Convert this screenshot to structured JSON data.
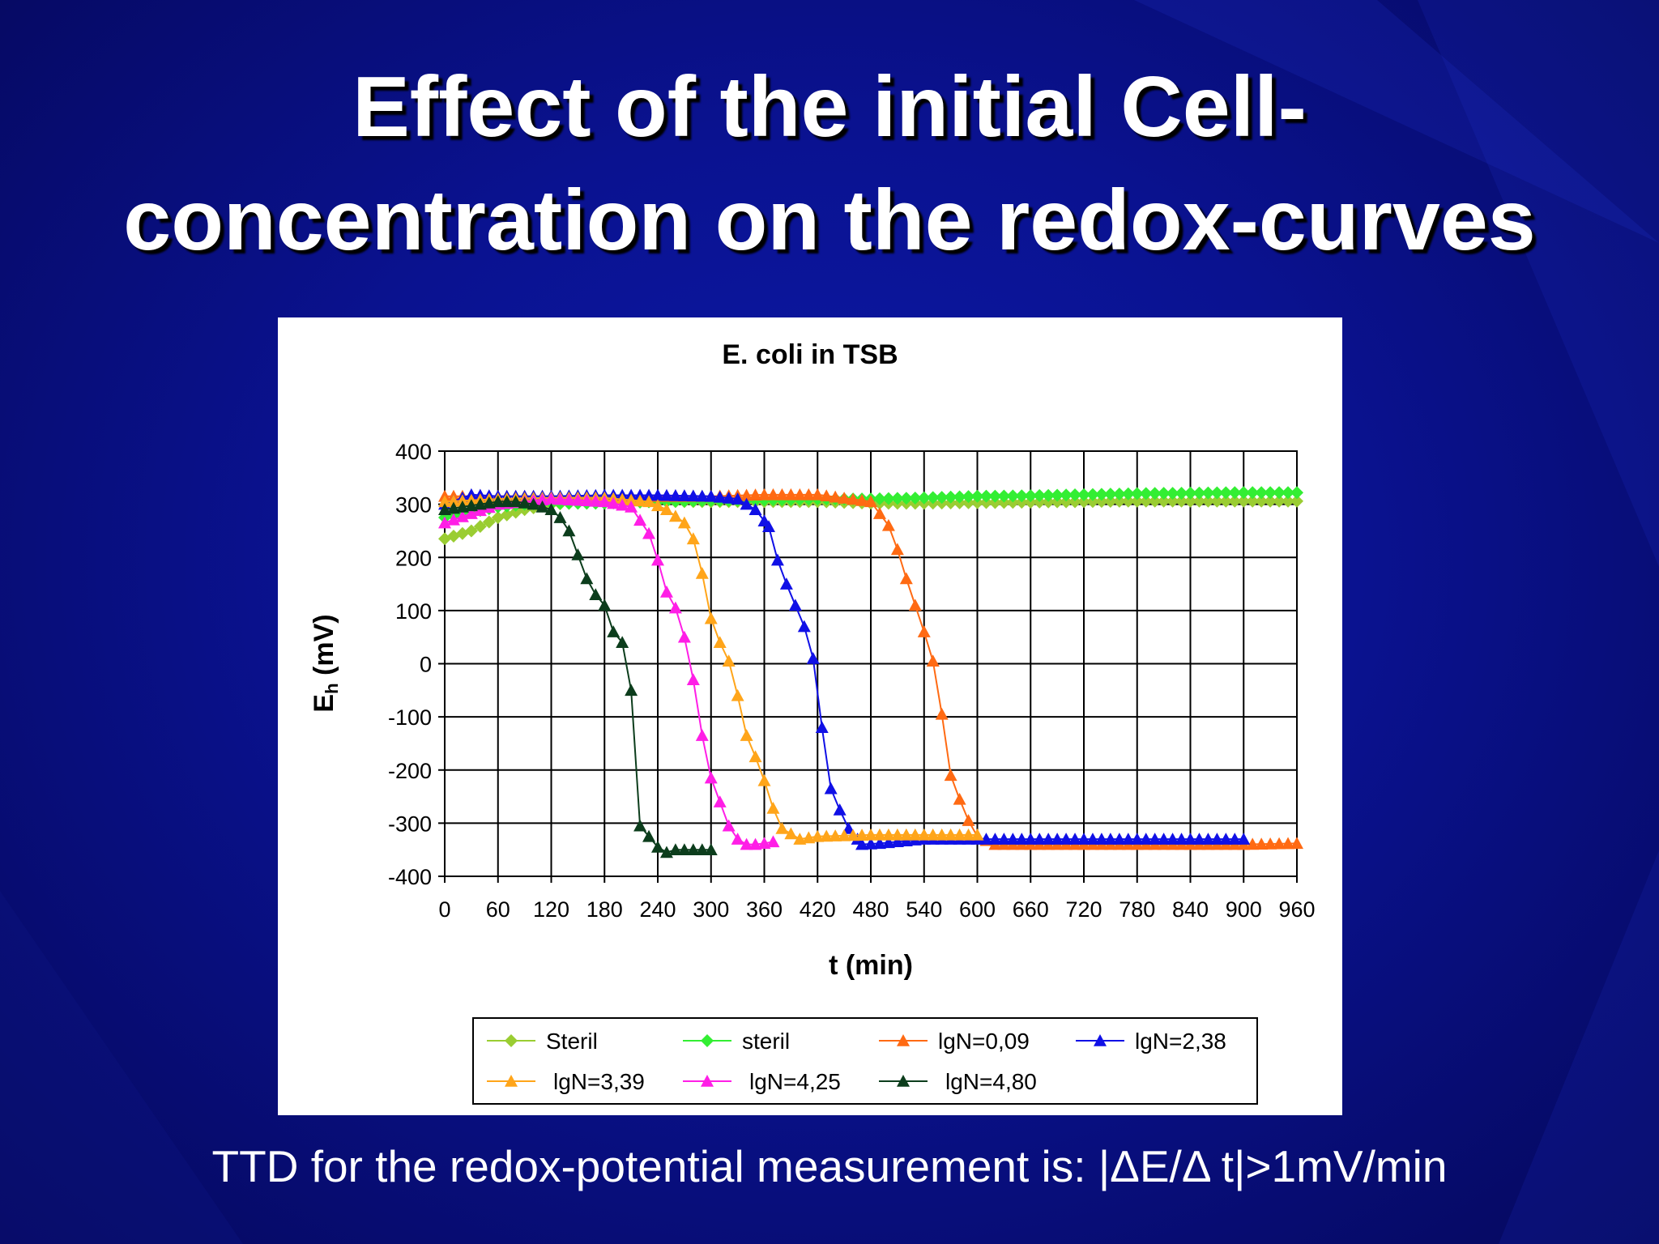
{
  "slide": {
    "title_line1": "Effect of the initial Cell-",
    "title_line2": "concentration on the redox-curves",
    "footer": "TTD for the redox-potential measurement is: |ΔE/Δ t|>1mV/min"
  },
  "colors": {
    "background": "#0a1290",
    "title": "#ffffff",
    "Steril": "#9acd32",
    "steril": "#33ee33",
    "lgN=0,09": "#ff6a13",
    "lgN=2,38": "#1010e6",
    "lgN=3,39": "#ffa51a",
    "lgN=4,25": "#ff1ee6",
    "lgN=4,80": "#0c3d1c"
  },
  "chart_data": {
    "type": "line",
    "title": "E. coli  in TSB",
    "xlabel": "t (min)",
    "ylabel": "Eh (mV)",
    "xlim": [
      0,
      960
    ],
    "ylim": [
      -400,
      400
    ],
    "xticks": [
      "0",
      "60",
      "120",
      "180",
      "240",
      "300",
      "360",
      "420",
      "480",
      "540",
      "600",
      "660",
      "720",
      "780",
      "840",
      "900",
      "960"
    ],
    "yticks": [
      "400",
      "300",
      "200",
      "100",
      "0",
      "-100",
      "-200",
      "-300",
      "-400"
    ],
    "grid": true,
    "legend_position": "bottom",
    "legend": [
      "Steril",
      "steril",
      "lgN=0,09",
      "lgN=2,38",
      "lgN=3,39",
      "lgN=4,25",
      "lgN=4,80"
    ],
    "series": [
      {
        "name": "Steril",
        "marker": "diamond",
        "x": [
          0,
          30,
          60,
          90,
          120,
          180,
          240,
          300,
          360,
          420,
          480,
          540,
          600,
          660,
          720,
          780,
          840,
          900,
          960
        ],
        "y": [
          235,
          250,
          275,
          290,
          300,
          305,
          305,
          305,
          305,
          305,
          302,
          302,
          303,
          304,
          305,
          306,
          306,
          306,
          306
        ]
      },
      {
        "name": "steril",
        "marker": "diamond",
        "x": [
          0,
          30,
          60,
          90,
          120,
          180,
          240,
          300,
          360,
          420,
          480,
          540,
          600,
          660,
          720,
          780,
          840,
          900,
          960
        ],
        "y": [
          275,
          285,
          295,
          300,
          302,
          302,
          305,
          307,
          308,
          310,
          310,
          312,
          315,
          316,
          318,
          320,
          321,
          322,
          322
        ]
      },
      {
        "name": "lgN=0,09",
        "marker": "triangle",
        "x": [
          0,
          60,
          120,
          180,
          240,
          300,
          360,
          420,
          480,
          500,
          510,
          520,
          530,
          540,
          550,
          560,
          570,
          580,
          590,
          600,
          620,
          660,
          720,
          780,
          840,
          900,
          960
        ],
        "y": [
          315,
          315,
          315,
          315,
          315,
          315,
          318,
          318,
          305,
          260,
          215,
          160,
          110,
          60,
          5,
          -95,
          -210,
          -255,
          -295,
          -325,
          -340,
          -340,
          -340,
          -340,
          -340,
          -340,
          -338
        ]
      },
      {
        "name": "lgN=2,38",
        "marker": "triangle",
        "x": [
          0,
          30,
          60,
          90,
          120,
          180,
          240,
          300,
          330,
          350,
          365,
          375,
          385,
          395,
          405,
          415,
          425,
          435,
          445,
          455,
          470,
          490,
          540,
          600,
          660,
          720,
          780,
          840,
          900
        ],
        "y": [
          300,
          318,
          315,
          315,
          315,
          317,
          317,
          315,
          310,
          290,
          258,
          195,
          150,
          110,
          70,
          10,
          -120,
          -235,
          -275,
          -310,
          -340,
          -338,
          -330,
          -330,
          -330,
          -330,
          -330,
          -330,
          -330
        ]
      },
      {
        "name": "lgN=3,39",
        "marker": "triangle",
        "x": [
          0,
          60,
          120,
          180,
          230,
          250,
          270,
          280,
          290,
          300,
          310,
          320,
          330,
          340,
          350,
          360,
          370,
          380,
          400,
          420,
          480,
          540,
          600
        ],
        "y": [
          305,
          310,
          312,
          312,
          305,
          290,
          265,
          235,
          170,
          85,
          40,
          5,
          -60,
          -135,
          -175,
          -220,
          -272,
          -310,
          -330,
          -325,
          -322,
          -322,
          -322
        ]
      },
      {
        "name": "lgN=4,25",
        "marker": "triangle",
        "x": [
          0,
          60,
          120,
          180,
          210,
          220,
          230,
          240,
          250,
          260,
          270,
          280,
          290,
          300,
          310,
          320,
          330,
          340,
          350,
          360,
          370
        ],
        "y": [
          265,
          300,
          310,
          305,
          295,
          270,
          245,
          195,
          135,
          105,
          50,
          -30,
          -135,
          -215,
          -260,
          -305,
          -330,
          -340,
          -340,
          -338,
          -335
        ]
      },
      {
        "name": "lgN=4,80",
        "marker": "triangle",
        "x": [
          0,
          20,
          40,
          60,
          80,
          100,
          120,
          130,
          140,
          150,
          160,
          170,
          180,
          190,
          200,
          210,
          220,
          230,
          240,
          250,
          260,
          270,
          280,
          290,
          300
        ],
        "y": [
          290,
          295,
          300,
          305,
          305,
          300,
          290,
          275,
          250,
          205,
          160,
          130,
          110,
          60,
          40,
          -50,
          -305,
          -325,
          -345,
          -355,
          -350,
          -350,
          -350,
          -350,
          -350
        ]
      }
    ]
  }
}
